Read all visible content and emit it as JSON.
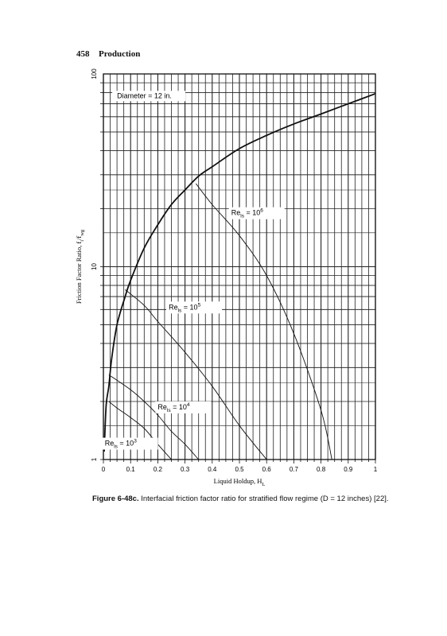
{
  "page": {
    "number": "458",
    "running_head": "Production"
  },
  "caption": {
    "label": "Figure 6-48c.",
    "text": "Interfacial friction factor ratio for stratified flow regime (D = 12 inches) [22]."
  },
  "chart_data": {
    "type": "line",
    "title": "Diameter = 12 in.",
    "xlabel": "Liquid Holdup, H",
    "xlabel_subscript": "L",
    "ylabel": "Friction Factor Ratio, f",
    "ylabel_sub1": "i",
    "ylabel_mid": "/f",
    "ylabel_sub2": "wg",
    "xlim": [
      0,
      1
    ],
    "ylim": [
      1,
      100
    ],
    "yscale": "log",
    "grid": true,
    "x_ticks": [
      "0",
      "0.1",
      "0.2",
      "0.3",
      "0.4",
      "0.5",
      "0.6",
      "0.7",
      "0.8",
      "0.9",
      "1"
    ],
    "y_ticks": [
      "1",
      "10",
      "100"
    ],
    "series": [
      {
        "kind": "envelope",
        "x": [
          0.003,
          0.01,
          0.02,
          0.03,
          0.05,
          0.08,
          0.1,
          0.15,
          0.2,
          0.25,
          0.3,
          0.35,
          0.4,
          0.5,
          0.6,
          0.7,
          0.8,
          0.9,
          1.0
        ],
        "y": [
          1.1,
          1.9,
          2.4,
          3.3,
          5.0,
          7.0,
          8.5,
          12.5,
          16.5,
          21.0,
          25.0,
          29.5,
          33.0,
          41.0,
          48.0,
          55.0,
          62.0,
          70.0,
          79.0
        ]
      },
      {
        "name": "Re",
        "name_sub": "ls",
        "name_mid": " = 10",
        "name_sup": "6",
        "x": [
          0.34,
          0.4,
          0.5,
          0.6,
          0.7,
          0.8,
          0.84
        ],
        "y": [
          27.0,
          21.0,
          14.5,
          9.0,
          4.5,
          1.8,
          1.0
        ]
      },
      {
        "name": "Re",
        "name_sub": "ls",
        "name_mid": " = 10",
        "name_sup": "5",
        "x": [
          0.08,
          0.15,
          0.2,
          0.3,
          0.4,
          0.5,
          0.6
        ],
        "y": [
          7.6,
          6.3,
          5.2,
          3.6,
          2.4,
          1.5,
          1.0
        ]
      },
      {
        "name": "Re",
        "name_sub": "ls",
        "name_mid": " = 10",
        "name_sup": "4",
        "x": [
          0.02,
          0.1,
          0.15,
          0.2,
          0.25,
          0.3,
          0.35
        ],
        "y": [
          2.75,
          2.3,
          2.0,
          1.7,
          1.4,
          1.2,
          1.0
        ]
      },
      {
        "name": "Re",
        "name_sub": "ls",
        "name_mid": " = 10",
        "name_sup": "3",
        "x": [
          0.02,
          0.05,
          0.1,
          0.15,
          0.2,
          0.25
        ],
        "y": [
          2.0,
          1.85,
          1.65,
          1.45,
          1.2,
          1.0
        ]
      }
    ]
  }
}
